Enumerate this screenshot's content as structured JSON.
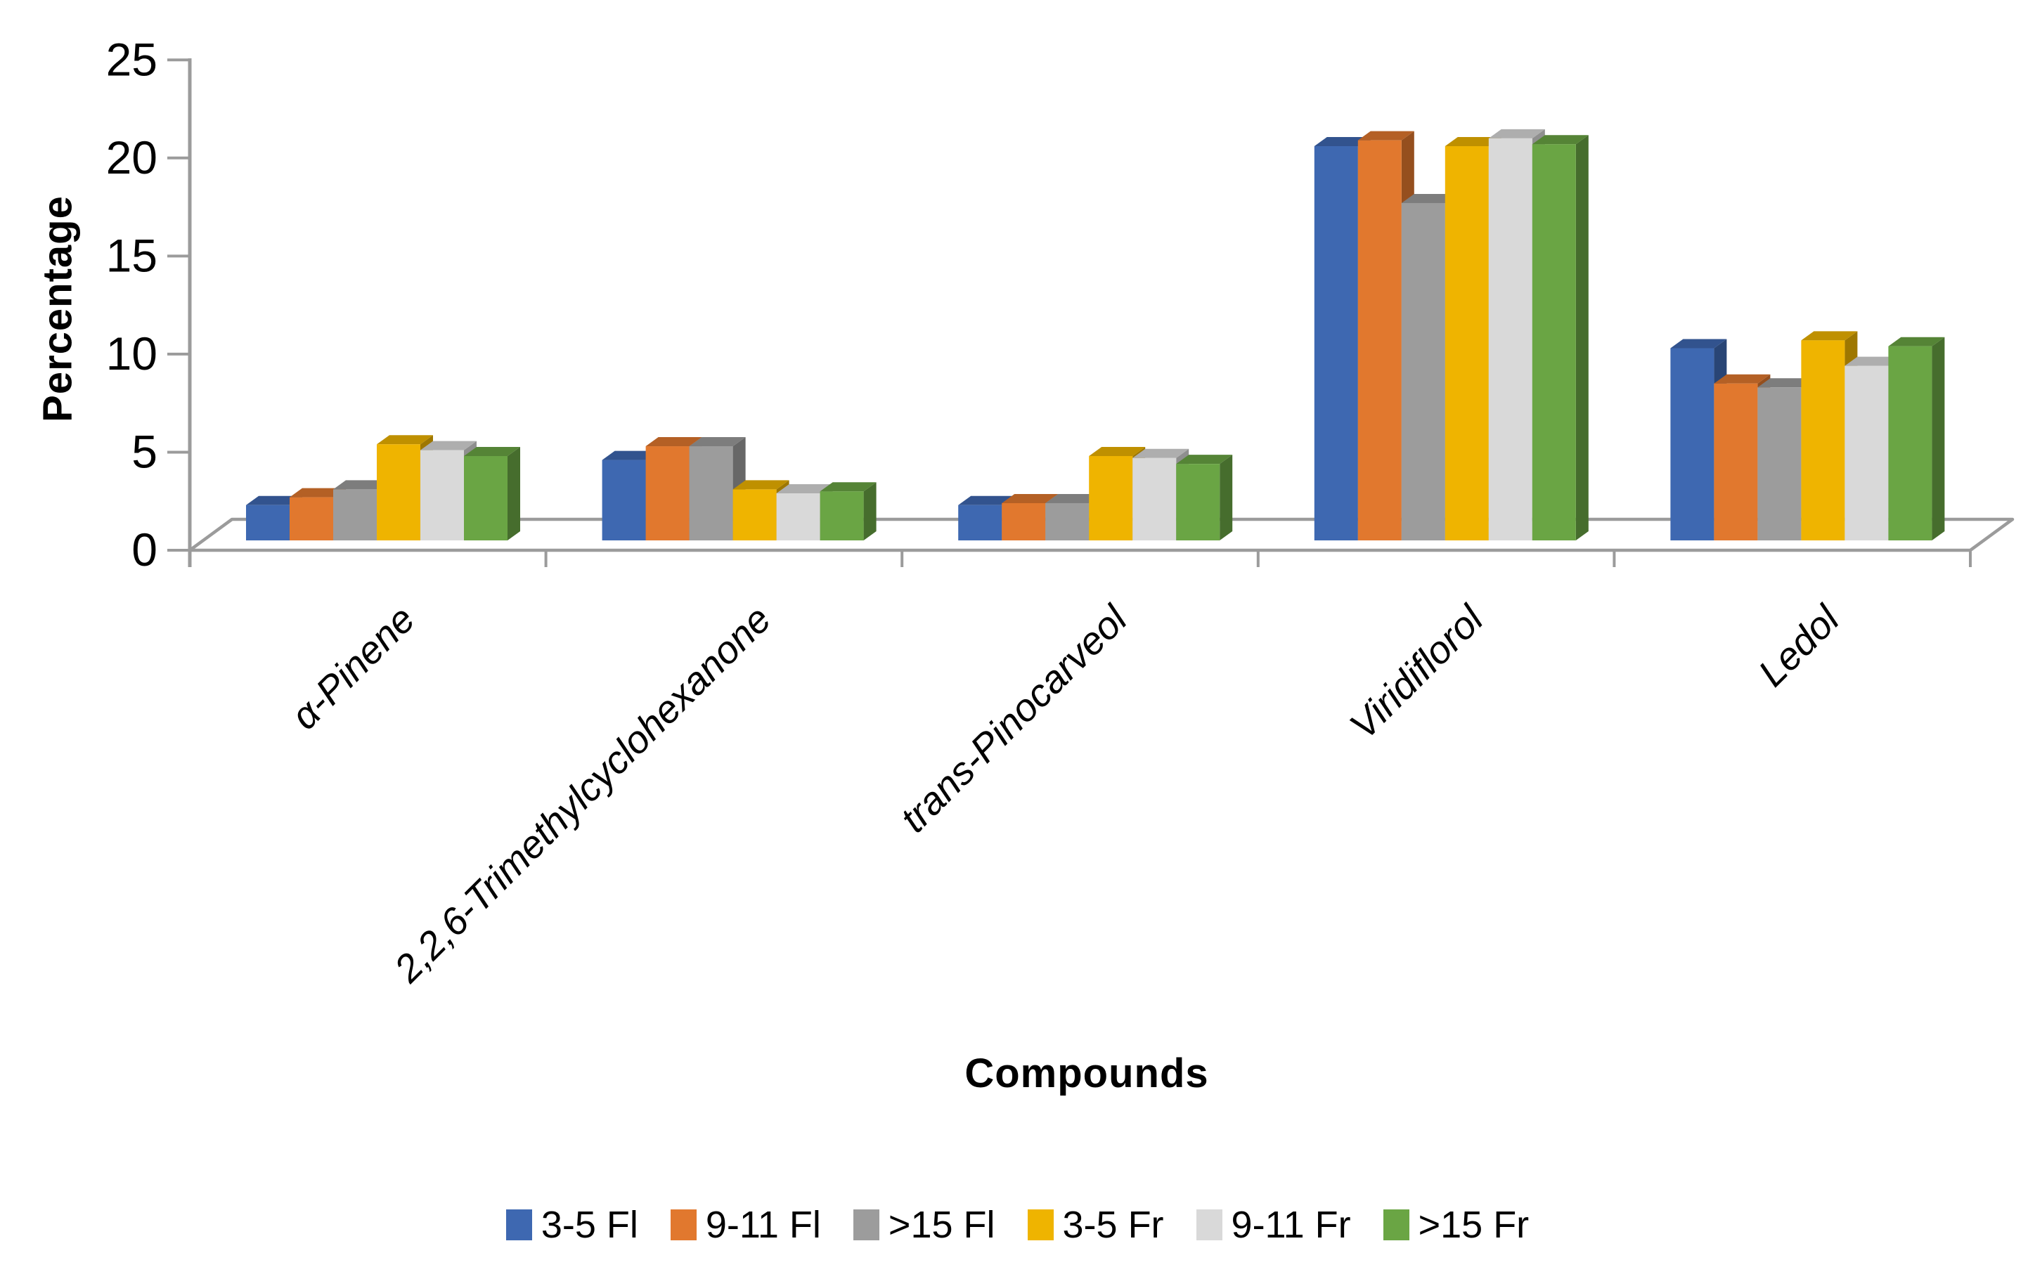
{
  "chart_data": {
    "type": "bar",
    "projection": "3d-clustered-column",
    "title": "",
    "xlabel": "Compounds",
    "ylabel": "Percentage",
    "ylim": [
      0,
      25
    ],
    "ytick_step": 5,
    "yticks": [
      0,
      5,
      10,
      15,
      20,
      25
    ],
    "grid": "off",
    "legend_position": "bottom",
    "axis_color": "#9B9B9B",
    "categories": [
      "α-Pinene",
      "2,2,6-Trimethylcyclohexanone",
      "trans-Pinocarveol",
      "Viridiflorol",
      "Ledol"
    ],
    "series": [
      {
        "name": "3-5 Fl",
        "color": "#3E68B1",
        "values": [
          1.8,
          4.1,
          1.8,
          20.1,
          9.8
        ]
      },
      {
        "name": "9-11 Fl",
        "color": "#E1782E",
        "values": [
          2.2,
          4.8,
          1.9,
          20.4,
          8.0
        ]
      },
      {
        "name": ">15 Fl",
        "color": "#9C9C9C",
        "values": [
          2.6,
          4.8,
          1.9,
          17.2,
          7.8
        ]
      },
      {
        "name": "3-5 Fr",
        "color": "#EFB400",
        "values": [
          4.9,
          2.6,
          4.3,
          20.1,
          10.2
        ]
      },
      {
        "name": "9-11 Fr",
        "color": "#D9D9D9",
        "values": [
          4.6,
          2.4,
          4.2,
          20.5,
          8.9
        ]
      },
      {
        "name": ">15 Fr",
        "color": "#6AA544",
        "values": [
          4.3,
          2.5,
          3.9,
          20.2,
          9.9
        ]
      }
    ]
  }
}
